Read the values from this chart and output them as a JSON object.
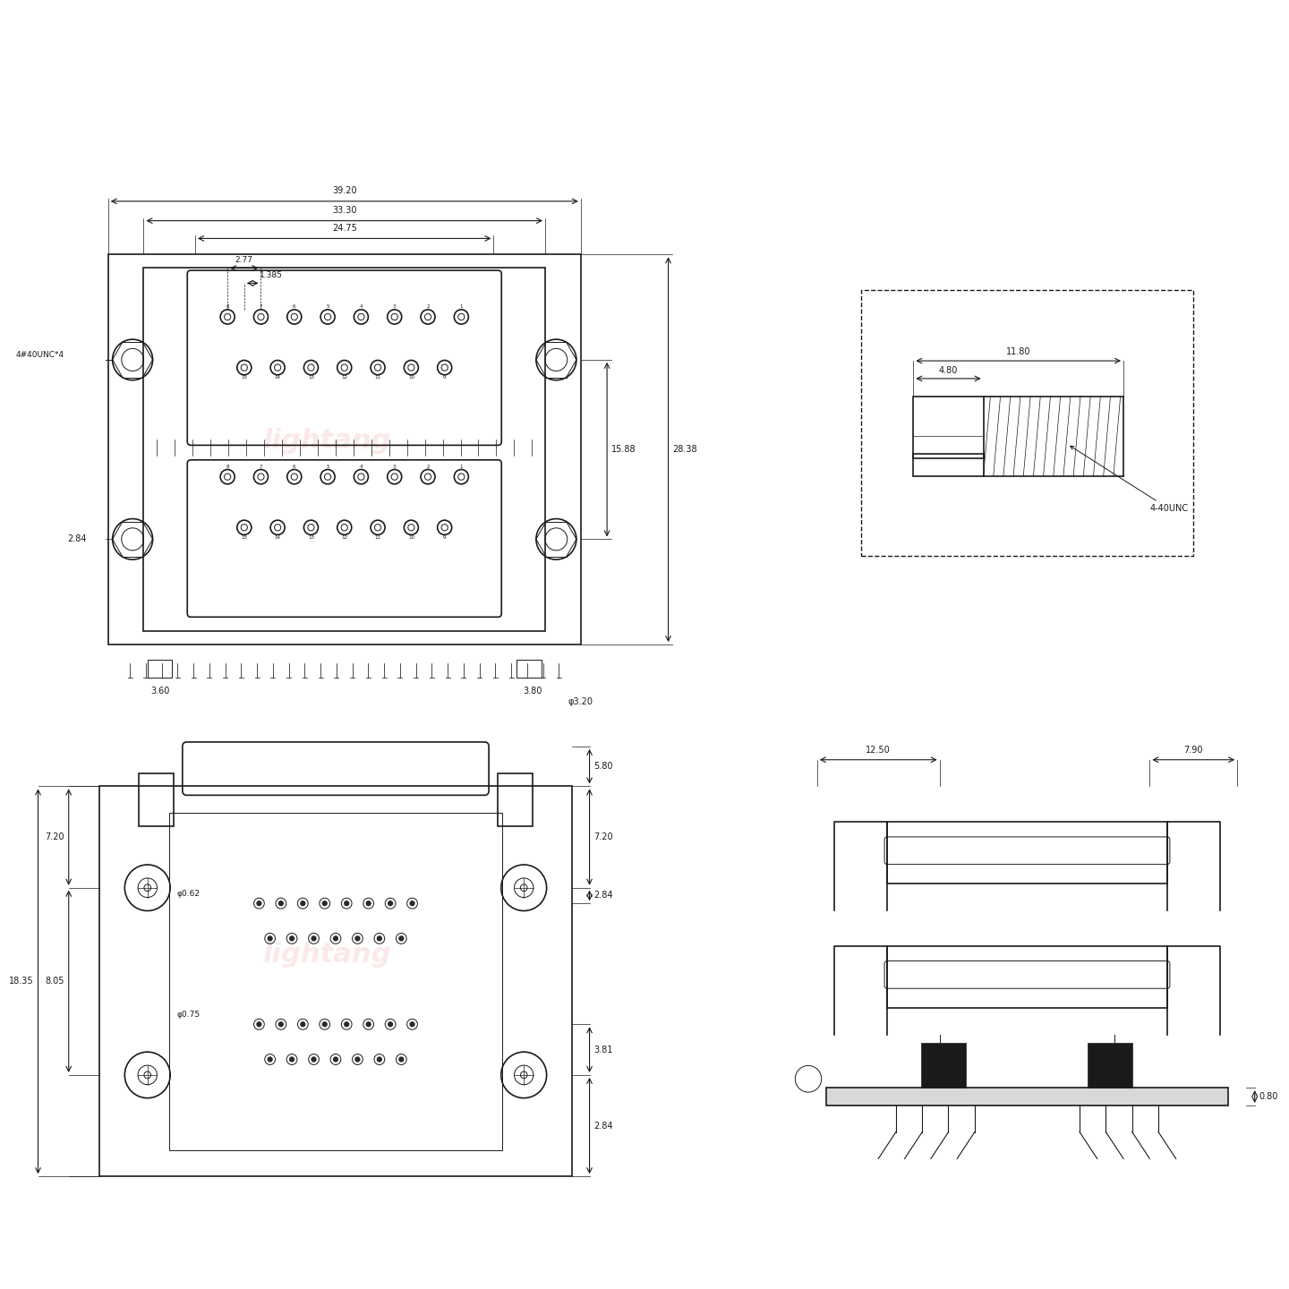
{
  "bg_color": "#ffffff",
  "line_color": "#1a1a1a",
  "dim_color": "#1a1a1a",
  "watermark": "lightang",
  "watermark_color": "#f5c0c0",
  "dims": {
    "total_width": "39.20",
    "inner_width": "33.30",
    "connector_width": "24.75",
    "pin_spacing": "2.77",
    "half_pin": "1.385",
    "height_between": "15.88",
    "total_height": "28.38",
    "screw_dia": "3.20",
    "screw_label": "4#40UNC*4",
    "screw_side": "2.84",
    "pin_left": "3.60",
    "pin_right": "3.80",
    "nut_label": "4-40UNC",
    "bolt_len": "11.80",
    "bolt_head": "4.80",
    "pitch_label": "0.62",
    "pitch2_label": "0.75",
    "side_w1": "12.50",
    "side_w2": "7.90",
    "side_r": "0.80",
    "bot_h1": "7.20",
    "bot_h2": "8.05",
    "bot_total": "18.35",
    "bot_dim1": "2.84",
    "bot_dim2": "3.81",
    "bot_dim3": "2.84",
    "bot_top": "5.80",
    "bot_left1": "7.20"
  }
}
